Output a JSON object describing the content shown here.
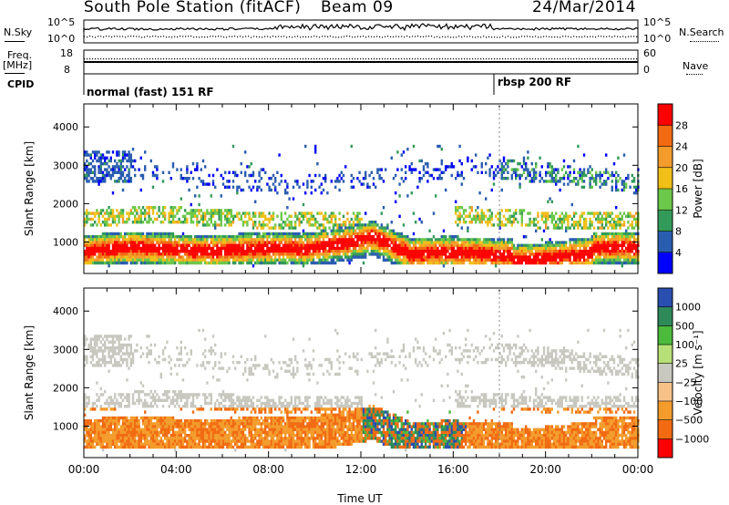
{
  "header": {
    "station": "South Pole Station (fitACF)",
    "beam": "Beam 09",
    "date": "24/Mar/2014"
  },
  "strip_labels": {
    "nsky": "N.Sky",
    "nsearch": "N.Search",
    "freq_line1": "Freq.",
    "freq_line2": "[MHz]",
    "nave": "Nave",
    "cpid": "CPID"
  },
  "strip_ticks": {
    "nsky_left": [
      "10^5",
      "10^0"
    ],
    "nsky_right": [
      "10^5",
      "10^0"
    ],
    "freq_left": [
      "18",
      "8"
    ],
    "freq_right": [
      "60",
      "0"
    ]
  },
  "cpid_segments": [
    {
      "label": "normal (fast) 151 RF",
      "start_hour": 0
    },
    {
      "label": "rbsp 200 RF",
      "start_hour": 18
    }
  ],
  "colors": {
    "power_scale": [
      "#0000ff",
      "#2a5db0",
      "#339b5a",
      "#6cc84a",
      "#f0c018",
      "#f39c2c",
      "#f26a12",
      "#ff0000"
    ],
    "velocity_scale": [
      "#ff0000",
      "#f26a12",
      "#f39c2c",
      "#f7c28a",
      "#c8c8c0",
      "#b8e078",
      "#4cba3c",
      "#2f8a5a",
      "#2a4fb0"
    ]
  },
  "chart_data": [
    {
      "type": "heatmap",
      "name": "power",
      "ylabel": "Slant Range [km]",
      "x_range_hours": [
        0,
        24
      ],
      "ylim_km": [
        180,
        4600
      ],
      "yticks": [
        "1000",
        "2000",
        "3000",
        "4000"
      ],
      "colorbar": {
        "label": "Power [dB]",
        "ticks": [
          "4",
          "8",
          "12",
          "16",
          "20",
          "24",
          "28"
        ],
        "range": [
          0,
          30
        ]
      }
    },
    {
      "type": "heatmap",
      "name": "velocity",
      "ylabel": "Slant Range [km]",
      "x_range_hours": [
        0,
        24
      ],
      "ylim_km": [
        180,
        4600
      ],
      "yticks": [
        "1000",
        "2000",
        "3000",
        "4000"
      ],
      "xlabel": "Time UT",
      "xticks": [
        "00:00",
        "04:00",
        "08:00",
        "12:00",
        "16:00",
        "20:00",
        "00:00"
      ],
      "colorbar": {
        "label": "Velocity [m s⁻¹]",
        "ticks": [
          "1000",
          "500",
          "100",
          "25",
          "−25",
          "−100",
          "−500",
          "−1000"
        ]
      }
    }
  ]
}
